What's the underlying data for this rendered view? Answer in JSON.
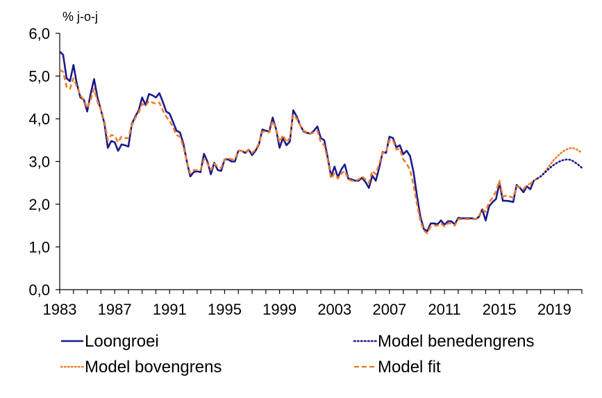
{
  "chart_data": {
    "type": "line",
    "ylabel": "% j-o-j",
    "xlim": [
      1983,
      2021
    ],
    "ylim": [
      0,
      6
    ],
    "y_ticks": [
      "0,0",
      "1,0",
      "2,0",
      "3,0",
      "4,0",
      "5,0",
      "6,0"
    ],
    "x_ticks": [
      "1983",
      "1987",
      "1991",
      "1995",
      "1999",
      "2003",
      "2007",
      "2011",
      "2015",
      "2019"
    ],
    "grid": false,
    "legend_position": "bottom",
    "colors": {
      "loongroei": "#1a1a8c",
      "benedengrens": "#1a1a8c",
      "bovengrens": "#f07d2a",
      "fit": "#f07d2a"
    },
    "series": [
      {
        "key": "loongroei",
        "name": "Loongroei",
        "style": "solid",
        "x": [
          1983.0,
          1983.25,
          1983.5,
          1983.75,
          1984.0,
          1984.25,
          1984.5,
          1984.75,
          1985.0,
          1985.25,
          1985.5,
          1985.75,
          1986.0,
          1986.25,
          1986.5,
          1986.75,
          1987.0,
          1987.25,
          1987.5,
          1987.75,
          1988.0,
          1988.25,
          1988.5,
          1988.75,
          1989.0,
          1989.25,
          1989.5,
          1989.75,
          1990.0,
          1990.25,
          1990.5,
          1990.75,
          1991.0,
          1991.25,
          1991.5,
          1991.75,
          1992.0,
          1992.25,
          1992.5,
          1992.75,
          1993.0,
          1993.25,
          1993.5,
          1993.75,
          1994.0,
          1994.25,
          1994.5,
          1994.75,
          1995.0,
          1995.25,
          1995.5,
          1995.75,
          1996.0,
          1996.25,
          1996.5,
          1996.75,
          1997.0,
          1997.25,
          1997.5,
          1997.75,
          1998.0,
          1998.25,
          1998.5,
          1998.75,
          1999.0,
          1999.25,
          1999.5,
          1999.75,
          2000.0,
          2000.25,
          2000.5,
          2000.75,
          2001.0,
          2001.25,
          2001.5,
          2001.75,
          2002.0,
          2002.25,
          2002.5,
          2002.75,
          2003.0,
          2003.25,
          2003.5,
          2003.75,
          2004.0,
          2004.25,
          2004.5,
          2004.75,
          2005.0,
          2005.25,
          2005.5,
          2005.75,
          2006.0,
          2006.25,
          2006.5,
          2006.75,
          2007.0,
          2007.25,
          2007.5,
          2007.75,
          2008.0,
          2008.25,
          2008.5,
          2008.75,
          2009.0,
          2009.25,
          2009.5,
          2009.75,
          2010.0,
          2010.25,
          2010.5,
          2010.75,
          2011.0,
          2011.25,
          2011.5,
          2011.75,
          2012.0,
          2012.25,
          2012.5,
          2012.75,
          2013.0,
          2013.25,
          2013.5,
          2013.75,
          2014.0,
          2014.25,
          2014.5,
          2014.75,
          2015.0,
          2015.25,
          2015.5,
          2015.75,
          2016.0,
          2016.25,
          2016.5,
          2016.75,
          2017.0,
          2017.25,
          2017.5,
          2017.75
        ],
        "values": [
          5.57,
          5.5,
          4.95,
          4.88,
          5.26,
          4.82,
          4.5,
          4.45,
          4.17,
          4.58,
          4.93,
          4.5,
          4.2,
          3.9,
          3.32,
          3.48,
          3.45,
          3.25,
          3.4,
          3.38,
          3.35,
          3.88,
          4.05,
          4.2,
          4.5,
          4.32,
          4.58,
          4.55,
          4.5,
          4.6,
          4.4,
          4.17,
          4.12,
          3.92,
          3.72,
          3.68,
          3.42,
          3.0,
          2.65,
          2.75,
          2.77,
          2.75,
          3.18,
          3.0,
          2.7,
          2.97,
          2.8,
          2.78,
          3.05,
          3.05,
          3.0,
          3.0,
          3.25,
          3.25,
          3.2,
          3.28,
          3.15,
          3.25,
          3.4,
          3.75,
          3.72,
          3.7,
          4.03,
          3.75,
          3.32,
          3.55,
          3.38,
          3.47,
          4.2,
          4.05,
          3.85,
          3.7,
          3.67,
          3.65,
          3.72,
          3.82,
          3.55,
          3.5,
          3.1,
          2.65,
          2.88,
          2.63,
          2.82,
          2.93,
          2.6,
          2.58,
          2.55,
          2.55,
          2.62,
          2.52,
          2.38,
          2.67,
          2.55,
          2.85,
          3.22,
          3.2,
          3.58,
          3.55,
          3.33,
          3.38,
          3.17,
          3.25,
          3.13,
          2.75,
          2.2,
          1.7,
          1.42,
          1.37,
          1.55,
          1.55,
          1.53,
          1.62,
          1.52,
          1.6,
          1.6,
          1.53,
          1.68,
          1.67,
          1.67,
          1.67,
          1.67,
          1.65,
          1.7,
          1.88,
          1.62,
          1.95,
          2.05,
          2.12,
          2.5,
          2.08,
          2.08,
          2.07,
          2.05,
          2.45,
          2.38,
          2.28,
          2.42,
          2.35,
          2.55,
          2.6
        ]
      },
      {
        "key": "benedengrens",
        "name": "Model benedengrens",
        "style": "dotted",
        "x": [
          2017.75,
          2018.0,
          2018.25,
          2018.5,
          2018.75,
          2019.0,
          2019.25,
          2019.5,
          2019.75,
          2020.0,
          2020.25,
          2020.5,
          2020.75,
          2021.0
        ],
        "values": [
          2.6,
          2.65,
          2.72,
          2.8,
          2.87,
          2.93,
          2.98,
          3.02,
          3.04,
          3.05,
          3.03,
          2.98,
          2.92,
          2.85
        ]
      },
      {
        "key": "bovengrens",
        "name": "Model bovengrens",
        "style": "dotted",
        "x": [
          2017.75,
          2018.0,
          2018.25,
          2018.5,
          2018.75,
          2019.0,
          2019.25,
          2019.5,
          2019.75,
          2020.0,
          2020.25,
          2020.5,
          2020.75,
          2021.0
        ],
        "values": [
          2.6,
          2.65,
          2.74,
          2.84,
          2.95,
          3.05,
          3.13,
          3.2,
          3.26,
          3.3,
          3.32,
          3.3,
          3.26,
          3.2
        ]
      },
      {
        "key": "fit",
        "name": "Model fit",
        "style": "dashed",
        "x": [
          1983.0,
          1983.25,
          1983.5,
          1983.75,
          1984.0,
          1984.25,
          1984.5,
          1984.75,
          1985.0,
          1985.25,
          1985.5,
          1985.75,
          1986.0,
          1986.25,
          1986.5,
          1986.75,
          1987.0,
          1987.25,
          1987.5,
          1987.75,
          1988.0,
          1988.25,
          1988.5,
          1988.75,
          1989.0,
          1989.25,
          1989.5,
          1989.75,
          1990.0,
          1990.25,
          1990.5,
          1990.75,
          1991.0,
          1991.25,
          1991.5,
          1991.75,
          1992.0,
          1992.25,
          1992.5,
          1992.75,
          1993.0,
          1993.25,
          1993.5,
          1993.75,
          1994.0,
          1994.25,
          1994.5,
          1994.75,
          1995.0,
          1995.25,
          1995.5,
          1995.75,
          1996.0,
          1996.25,
          1996.5,
          1996.75,
          1997.0,
          1997.25,
          1997.5,
          1997.75,
          1998.0,
          1998.25,
          1998.5,
          1998.75,
          1999.0,
          1999.25,
          1999.5,
          1999.75,
          2000.0,
          2000.25,
          2000.5,
          2000.75,
          2001.0,
          2001.25,
          2001.5,
          2001.75,
          2002.0,
          2002.25,
          2002.5,
          2002.75,
          2003.0,
          2003.25,
          2003.5,
          2003.75,
          2004.0,
          2004.25,
          2004.5,
          2004.75,
          2005.0,
          2005.25,
          2005.5,
          2005.75,
          2006.0,
          2006.25,
          2006.5,
          2006.75,
          2007.0,
          2007.25,
          2007.5,
          2007.75,
          2008.0,
          2008.25,
          2008.5,
          2008.75,
          2009.0,
          2009.25,
          2009.5,
          2009.75,
          2010.0,
          2010.25,
          2010.5,
          2010.75,
          2011.0,
          2011.25,
          2011.5,
          2011.75,
          2012.0,
          2012.25,
          2012.5,
          2012.75,
          2013.0,
          2013.25,
          2013.5,
          2013.75,
          2014.0,
          2014.25,
          2014.5,
          2014.75,
          2015.0,
          2015.25,
          2015.5,
          2015.75,
          2016.0,
          2016.25,
          2016.5,
          2016.75,
          2017.0,
          2017.25,
          2017.5,
          2017.75
        ],
        "values": [
          5.15,
          5.1,
          4.75,
          4.7,
          4.95,
          4.75,
          4.55,
          4.45,
          4.25,
          4.45,
          4.7,
          4.4,
          4.2,
          3.95,
          3.5,
          3.62,
          3.6,
          3.45,
          3.58,
          3.55,
          3.55,
          3.85,
          4.02,
          4.15,
          4.35,
          4.3,
          4.42,
          4.38,
          4.35,
          4.38,
          4.2,
          4.05,
          3.95,
          3.8,
          3.62,
          3.58,
          3.35,
          3.0,
          2.72,
          2.8,
          2.8,
          2.8,
          3.05,
          2.95,
          2.8,
          2.95,
          2.88,
          2.85,
          3.05,
          3.08,
          3.05,
          3.05,
          3.25,
          3.25,
          3.22,
          3.28,
          3.2,
          3.28,
          3.42,
          3.7,
          3.7,
          3.68,
          3.95,
          3.75,
          3.45,
          3.62,
          3.45,
          3.55,
          4.1,
          4.0,
          3.85,
          3.72,
          3.68,
          3.65,
          3.68,
          3.72,
          3.45,
          3.38,
          3.05,
          2.6,
          2.72,
          2.6,
          2.72,
          2.78,
          2.58,
          2.55,
          2.55,
          2.58,
          2.65,
          2.58,
          2.5,
          2.78,
          2.7,
          2.95,
          3.2,
          3.22,
          3.5,
          3.5,
          3.28,
          3.3,
          3.05,
          2.95,
          2.8,
          2.45,
          2.0,
          1.6,
          1.38,
          1.32,
          1.48,
          1.5,
          1.5,
          1.55,
          1.48,
          1.55,
          1.55,
          1.5,
          1.65,
          1.65,
          1.65,
          1.65,
          1.65,
          1.65,
          1.72,
          1.88,
          1.82,
          2.05,
          2.15,
          2.3,
          2.55,
          2.18,
          2.2,
          2.18,
          2.15,
          2.42,
          2.4,
          2.35,
          2.45,
          2.48,
          2.55,
          2.6
        ]
      }
    ]
  }
}
